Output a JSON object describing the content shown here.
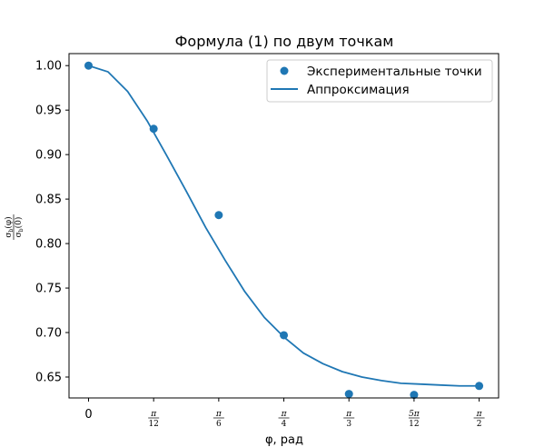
{
  "chart_data": {
    "type": "scatter",
    "title": "Формула (1) по двум точкам",
    "xlabel": "φ, рад",
    "ylabel": "σb(φ) / σb(0)",
    "ylabel_parts": {
      "num_sym": "σ",
      "num_sub": "b",
      "num_arg": "(φ)",
      "den_sym": "σ",
      "den_sub": "b",
      "den_arg": "(0)"
    },
    "xlim": [
      -0.0785,
      1.649
    ],
    "ylim": [
      0.6265,
      1.0135
    ],
    "x_ticks": [
      {
        "value": 0,
        "label": "0"
      },
      {
        "value": 0.2618,
        "num": "π",
        "den": "12"
      },
      {
        "value": 0.5236,
        "num": "π",
        "den": "6"
      },
      {
        "value": 0.7854,
        "num": "π",
        "den": "4"
      },
      {
        "value": 1.0472,
        "num": "π",
        "den": "3"
      },
      {
        "value": 1.309,
        "num": "5π",
        "den": "12"
      },
      {
        "value": 1.5708,
        "num": "π",
        "den": "2"
      }
    ],
    "y_ticks": [
      {
        "value": 0.65,
        "label": "0.65"
      },
      {
        "value": 0.7,
        "label": "0.70"
      },
      {
        "value": 0.75,
        "label": "0.75"
      },
      {
        "value": 0.8,
        "label": "0.80"
      },
      {
        "value": 0.85,
        "label": "0.85"
      },
      {
        "value": 0.9,
        "label": "0.90"
      },
      {
        "value": 0.95,
        "label": "0.95"
      },
      {
        "value": 1.0,
        "label": "1.00"
      }
    ],
    "series": [
      {
        "name": "Экспериментальные точки",
        "kind": "scatter",
        "color": "#1f77b4",
        "x": [
          0,
          0.2618,
          0.5236,
          0.7854,
          1.0472,
          1.309,
          1.5708
        ],
        "y": [
          1.0,
          0.929,
          0.832,
          0.697,
          0.631,
          0.63,
          0.64
        ]
      },
      {
        "name": "Аппроксимация",
        "kind": "line",
        "color": "#1f77b4",
        "x": [
          0,
          0.0785,
          0.1571,
          0.2356,
          0.3142,
          0.3927,
          0.4712,
          0.5498,
          0.6283,
          0.7069,
          0.7854,
          0.8639,
          0.9425,
          1.021,
          1.0996,
          1.1781,
          1.2566,
          1.3352,
          1.4137,
          1.4923,
          1.5708
        ],
        "y": [
          1.0,
          0.993,
          0.971,
          0.938,
          0.899,
          0.859,
          0.818,
          0.781,
          0.746,
          0.717,
          0.695,
          0.677,
          0.665,
          0.656,
          0.65,
          0.646,
          0.643,
          0.642,
          0.641,
          0.64,
          0.64
        ]
      }
    ],
    "legend_position": "top-right",
    "grid": false
  }
}
